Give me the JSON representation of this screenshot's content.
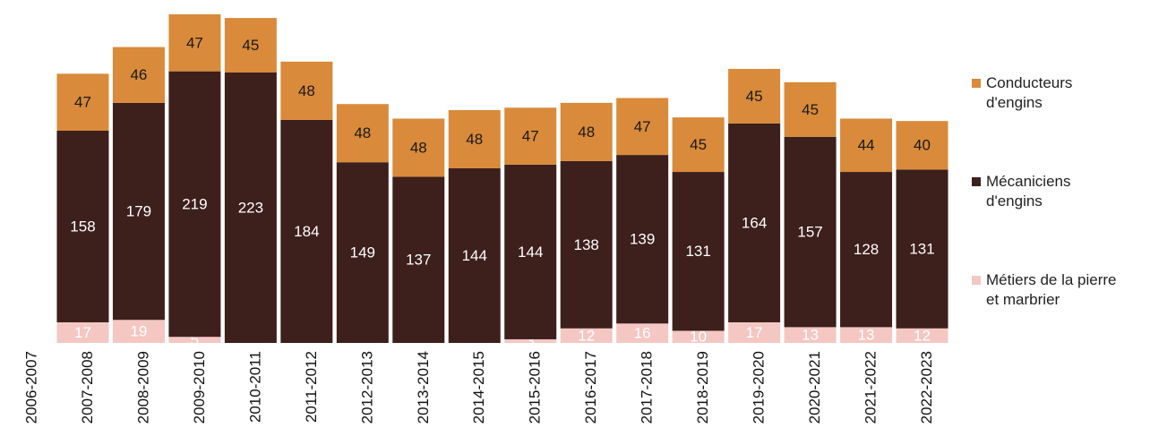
{
  "chart_data": {
    "type": "stacked_bar",
    "categories": [
      "2006-2007",
      "2007-2008",
      "2008-2009",
      "2009-2010",
      "2010-2011",
      "2011-2012",
      "2012-2013",
      "2013-2014",
      "2014-2015",
      "2015-2016",
      "2016-2017",
      "2017-2018",
      "2018-2019",
      "2019-2020",
      "2020-2021",
      "2021-2022",
      "2022-2023"
    ],
    "series": [
      {
        "name": "Métiers de la pierre et marbrier",
        "color": "#f4c7c3",
        "label_color": "#ffffff",
        "values": [
          null,
          17,
          19,
          5,
          null,
          null,
          null,
          null,
          null,
          3,
          12,
          16,
          10,
          17,
          13,
          13,
          12
        ]
      },
      {
        "name": "Mécaniciens d'engins",
        "color": "#3d1f1c",
        "label_color": "#ffffff",
        "values": [
          null,
          158,
          179,
          219,
          223,
          184,
          149,
          137,
          144,
          144,
          138,
          139,
          131,
          164,
          157,
          128,
          131
        ]
      },
      {
        "name": "Conducteurs d'engins",
        "color": "#d98a3a",
        "label_color": "#1a1a1a",
        "values": [
          null,
          47,
          46,
          47,
          45,
          48,
          48,
          48,
          48,
          47,
          48,
          47,
          45,
          45,
          45,
          44,
          40
        ]
      }
    ]
  }
}
